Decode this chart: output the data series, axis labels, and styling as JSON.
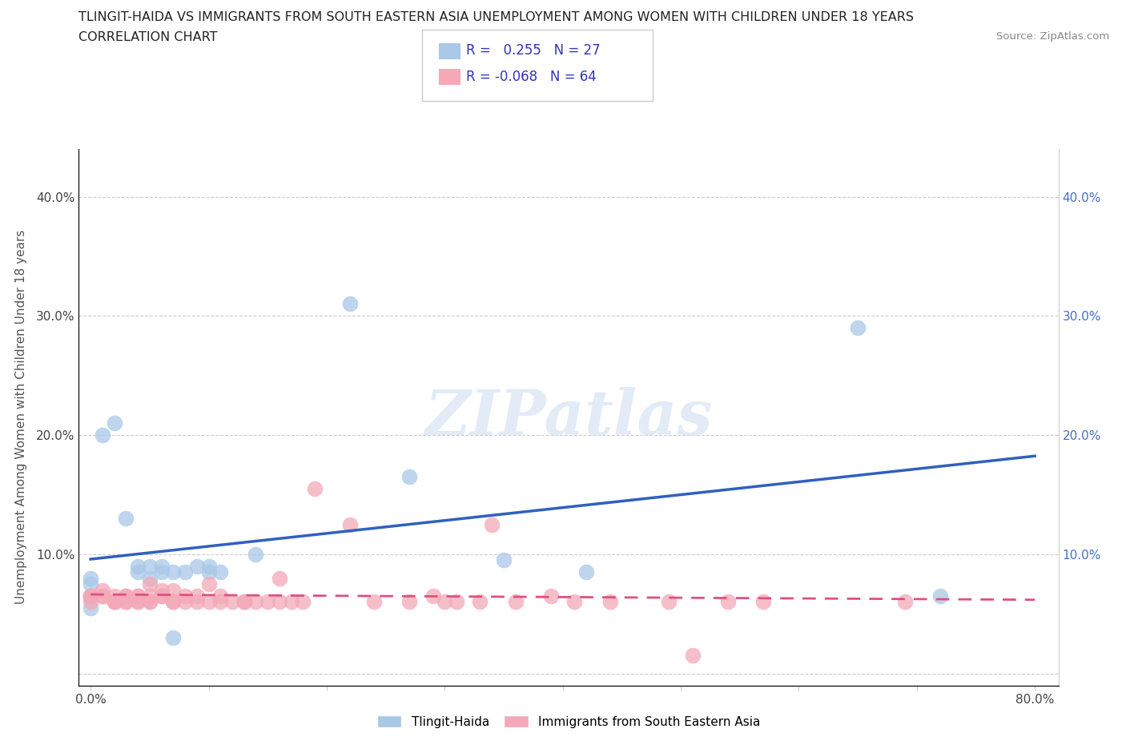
{
  "title_line1": "TLINGIT-HAIDA VS IMMIGRANTS FROM SOUTH EASTERN ASIA UNEMPLOYMENT AMONG WOMEN WITH CHILDREN UNDER 18 YEARS",
  "title_line2": "CORRELATION CHART",
  "source_text": "Source: ZipAtlas.com",
  "ylabel": "Unemployment Among Women with Children Under 18 years",
  "xlim": [
    -0.01,
    0.82
  ],
  "ylim": [
    -0.01,
    0.44
  ],
  "xticks": [
    0.0,
    0.1,
    0.2,
    0.3,
    0.4,
    0.5,
    0.6,
    0.7,
    0.8
  ],
  "xticklabels": [
    "0.0%",
    "",
    "",
    "",
    "",
    "",
    "",
    "",
    "80.0%"
  ],
  "yticks": [
    0.0,
    0.1,
    0.2,
    0.3,
    0.4
  ],
  "yticklabels_left": [
    "",
    "10.0%",
    "20.0%",
    "30.0%",
    "40.0%"
  ],
  "yticklabels_right": [
    "",
    "10.0%",
    "20.0%",
    "30.0%",
    "40.0%"
  ],
  "grid_color": "#cccccc",
  "background_color": "#ffffff",
  "r1": 0.255,
  "n1": 27,
  "r2": -0.068,
  "n2": 64,
  "tlingit_color": "#a8c8e8",
  "immigrant_color": "#f4a8b8",
  "trendline1_color": "#3060c0",
  "trendline2_color": "#e05080",
  "legend_label1": "Tlingit-Haida",
  "legend_label2": "Immigrants from South Eastern Asia",
  "tlingit_points": [
    [
      0.0,
      0.075
    ],
    [
      0.0,
      0.055
    ],
    [
      0.0,
      0.065
    ],
    [
      0.0,
      0.08
    ],
    [
      0.01,
      0.2
    ],
    [
      0.02,
      0.21
    ],
    [
      0.03,
      0.13
    ],
    [
      0.04,
      0.085
    ],
    [
      0.04,
      0.09
    ],
    [
      0.05,
      0.09
    ],
    [
      0.05,
      0.08
    ],
    [
      0.06,
      0.085
    ],
    [
      0.06,
      0.09
    ],
    [
      0.07,
      0.03
    ],
    [
      0.07,
      0.085
    ],
    [
      0.08,
      0.085
    ],
    [
      0.09,
      0.09
    ],
    [
      0.1,
      0.085
    ],
    [
      0.1,
      0.09
    ],
    [
      0.11,
      0.085
    ],
    [
      0.14,
      0.1
    ],
    [
      0.22,
      0.31
    ],
    [
      0.27,
      0.165
    ],
    [
      0.35,
      0.095
    ],
    [
      0.42,
      0.085
    ],
    [
      0.65,
      0.29
    ],
    [
      0.72,
      0.065
    ]
  ],
  "immigrant_points": [
    [
      0.0,
      0.065
    ],
    [
      0.0,
      0.06
    ],
    [
      0.0,
      0.065
    ],
    [
      0.0,
      0.065
    ],
    [
      0.01,
      0.065
    ],
    [
      0.01,
      0.065
    ],
    [
      0.01,
      0.07
    ],
    [
      0.02,
      0.065
    ],
    [
      0.02,
      0.06
    ],
    [
      0.02,
      0.06
    ],
    [
      0.02,
      0.06
    ],
    [
      0.03,
      0.065
    ],
    [
      0.03,
      0.06
    ],
    [
      0.03,
      0.065
    ],
    [
      0.03,
      0.06
    ],
    [
      0.04,
      0.065
    ],
    [
      0.04,
      0.06
    ],
    [
      0.04,
      0.065
    ],
    [
      0.04,
      0.06
    ],
    [
      0.05,
      0.075
    ],
    [
      0.05,
      0.06
    ],
    [
      0.05,
      0.065
    ],
    [
      0.05,
      0.06
    ],
    [
      0.06,
      0.065
    ],
    [
      0.06,
      0.07
    ],
    [
      0.06,
      0.065
    ],
    [
      0.07,
      0.06
    ],
    [
      0.07,
      0.06
    ],
    [
      0.07,
      0.07
    ],
    [
      0.08,
      0.06
    ],
    [
      0.08,
      0.065
    ],
    [
      0.09,
      0.06
    ],
    [
      0.09,
      0.065
    ],
    [
      0.1,
      0.06
    ],
    [
      0.1,
      0.075
    ],
    [
      0.11,
      0.065
    ],
    [
      0.11,
      0.06
    ],
    [
      0.12,
      0.06
    ],
    [
      0.13,
      0.06
    ],
    [
      0.13,
      0.06
    ],
    [
      0.14,
      0.06
    ],
    [
      0.15,
      0.06
    ],
    [
      0.16,
      0.08
    ],
    [
      0.16,
      0.06
    ],
    [
      0.17,
      0.06
    ],
    [
      0.18,
      0.06
    ],
    [
      0.19,
      0.155
    ],
    [
      0.22,
      0.125
    ],
    [
      0.24,
      0.06
    ],
    [
      0.27,
      0.06
    ],
    [
      0.29,
      0.065
    ],
    [
      0.3,
      0.06
    ],
    [
      0.31,
      0.06
    ],
    [
      0.33,
      0.06
    ],
    [
      0.34,
      0.125
    ],
    [
      0.36,
      0.06
    ],
    [
      0.39,
      0.065
    ],
    [
      0.41,
      0.06
    ],
    [
      0.44,
      0.06
    ],
    [
      0.49,
      0.06
    ],
    [
      0.51,
      0.015
    ],
    [
      0.54,
      0.06
    ],
    [
      0.57,
      0.06
    ],
    [
      0.69,
      0.06
    ]
  ]
}
